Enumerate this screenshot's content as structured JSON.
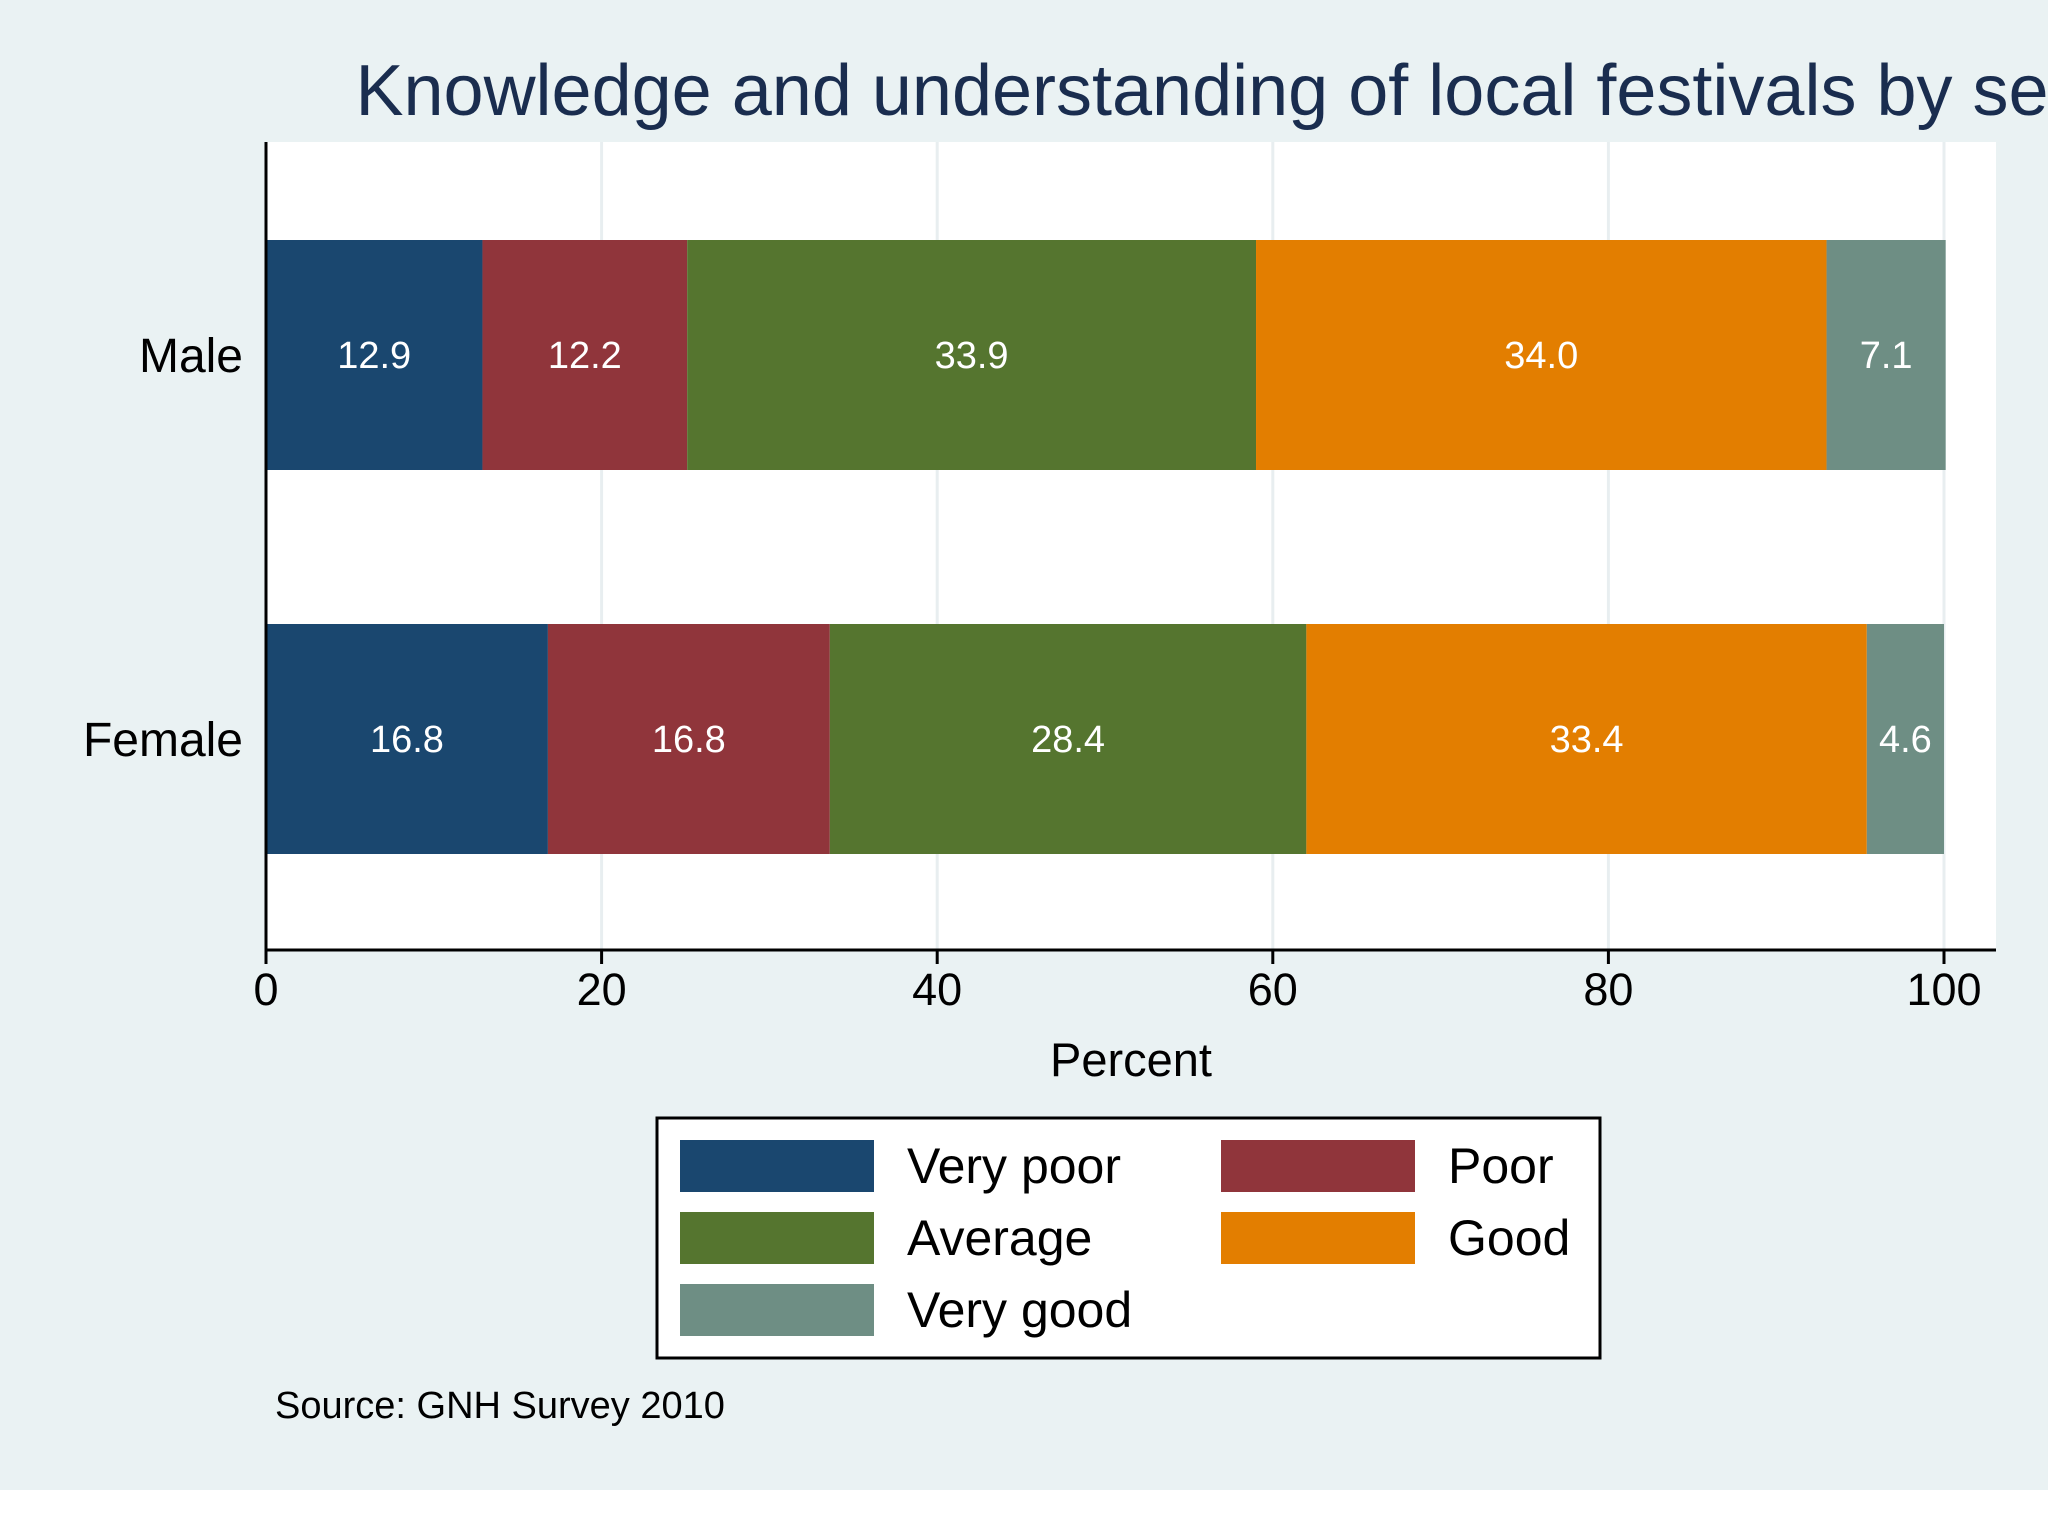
{
  "chart_data": {
    "type": "bar",
    "orientation": "horizontal",
    "stacked": true,
    "title": "Knowledge and understanding of local festivals by sex",
    "categories": [
      "Male",
      "Female"
    ],
    "series": [
      {
        "name": "Very poor",
        "color": "#1a476f",
        "values": [
          12.9,
          16.8
        ],
        "labels": [
          "12.9",
          "16.8"
        ]
      },
      {
        "name": "Poor",
        "color": "#90353b",
        "values": [
          12.2,
          16.8
        ],
        "labels": [
          "12.2",
          "16.8"
        ]
      },
      {
        "name": "Average",
        "color": "#55752f",
        "values": [
          33.9,
          28.4
        ],
        "labels": [
          "33.9",
          "28.4"
        ]
      },
      {
        "name": "Good",
        "color": "#e37e00",
        "values": [
          34.0,
          33.4
        ],
        "labels": [
          "34.0",
          "33.4"
        ]
      },
      {
        "name": "Very good",
        "color": "#6e8e84",
        "values": [
          7.1,
          4.6
        ],
        "labels": [
          "7.1",
          "4.6"
        ]
      }
    ],
    "xlabel": "Percent",
    "ylabel": "",
    "xlim": [
      0,
      103
    ],
    "xticks": [
      0,
      20,
      40,
      60,
      80,
      100
    ],
    "xtick_labels": [
      "0",
      "20",
      "40",
      "60",
      "80",
      "100"
    ],
    "grid": true,
    "legend_position": "bottom",
    "note": "Source: GNH Survey 2010"
  }
}
